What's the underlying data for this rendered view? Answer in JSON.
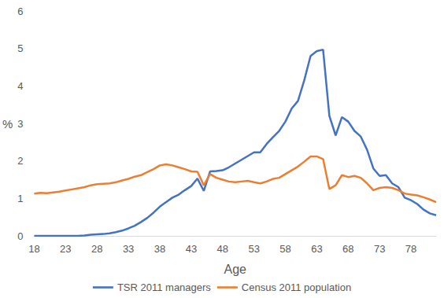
{
  "chart_data": {
    "type": "line",
    "x_label": "Age",
    "y_label": "%",
    "x": [
      18,
      19,
      20,
      21,
      22,
      23,
      24,
      25,
      26,
      27,
      28,
      29,
      30,
      31,
      32,
      33,
      34,
      35,
      36,
      37,
      38,
      39,
      40,
      41,
      42,
      43,
      44,
      45,
      46,
      47,
      48,
      49,
      50,
      51,
      52,
      53,
      54,
      55,
      56,
      57,
      58,
      59,
      60,
      61,
      62,
      63,
      64,
      65,
      66,
      67,
      68,
      69,
      70,
      71,
      72,
      73,
      74,
      75,
      76,
      77,
      78,
      79,
      80,
      81,
      82
    ],
    "series": [
      {
        "name": "TSR 2011 managers",
        "color": "#4472c4",
        "values": [
          0,
          0,
          0,
          0,
          0,
          0,
          0,
          0,
          0.01,
          0.03,
          0.04,
          0.05,
          0.07,
          0.1,
          0.14,
          0.2,
          0.27,
          0.37,
          0.48,
          0.62,
          0.78,
          0.9,
          1.02,
          1.1,
          1.22,
          1.33,
          1.53,
          1.2,
          1.72,
          1.73,
          1.75,
          1.83,
          1.93,
          2.03,
          2.13,
          2.23,
          2.23,
          2.45,
          2.63,
          2.8,
          3.05,
          3.4,
          3.6,
          4.15,
          4.8,
          4.93,
          4.97,
          3.2,
          2.68,
          3.17,
          3.05,
          2.8,
          2.65,
          2.3,
          1.8,
          1.6,
          1.62,
          1.4,
          1.3,
          1.02,
          0.95,
          0.85,
          0.7,
          0.6,
          0.55
        ]
      },
      {
        "name": "Census 2011 population",
        "color": "#ed7d31",
        "values": [
          1.13,
          1.15,
          1.14,
          1.16,
          1.18,
          1.21,
          1.24,
          1.27,
          1.3,
          1.35,
          1.38,
          1.39,
          1.4,
          1.43,
          1.48,
          1.52,
          1.58,
          1.62,
          1.7,
          1.78,
          1.88,
          1.91,
          1.88,
          1.83,
          1.78,
          1.72,
          1.71,
          1.35,
          1.65,
          1.55,
          1.5,
          1.45,
          1.43,
          1.45,
          1.47,
          1.43,
          1.4,
          1.45,
          1.52,
          1.55,
          1.65,
          1.75,
          1.85,
          1.98,
          2.12,
          2.12,
          2.05,
          1.25,
          1.35,
          1.62,
          1.57,
          1.6,
          1.55,
          1.4,
          1.22,
          1.28,
          1.3,
          1.28,
          1.22,
          1.13,
          1.1,
          1.08,
          1.03,
          0.97,
          0.9
        ]
      }
    ],
    "xlim": [
      18,
      82
    ],
    "xticks": [
      18,
      23,
      28,
      33,
      38,
      43,
      48,
      53,
      58,
      63,
      68,
      73,
      78
    ],
    "ylim": [
      0,
      6
    ],
    "yticks": [
      0,
      1,
      2,
      3,
      4,
      5,
      6
    ],
    "grid": false,
    "legend": "bottom"
  }
}
